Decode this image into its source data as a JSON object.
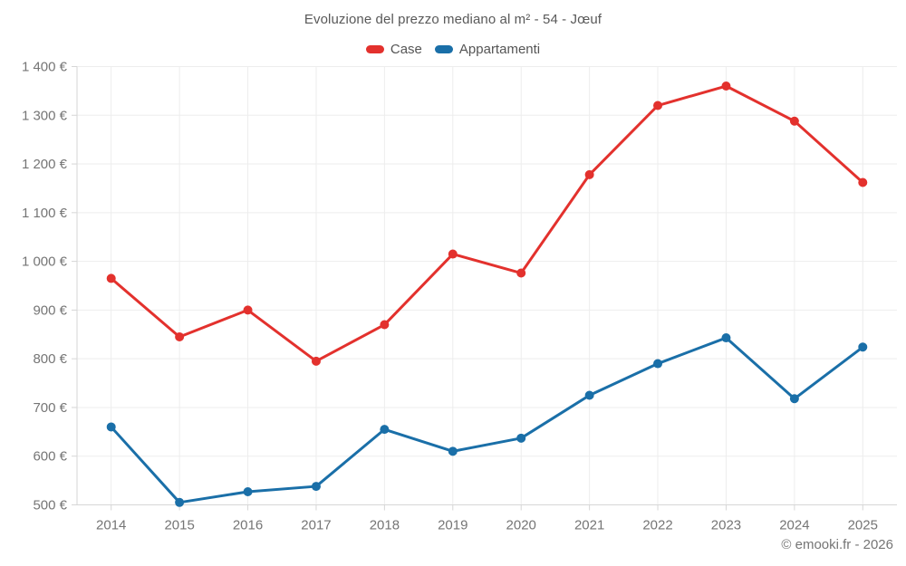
{
  "title": "Evoluzione del prezzo mediano al m² - 54 - Jœuf",
  "footer": "© emooki.fr - 2026",
  "legend": {
    "items": [
      {
        "label": "Case",
        "color": "#e3312d"
      },
      {
        "label": "Appartamenti",
        "color": "#1a6fa8"
      }
    ]
  },
  "colors": {
    "series_case": "#e3312d",
    "series_appartamenti": "#1a6fa8",
    "grid": "#ededed",
    "axis_border": "#d6d6d6",
    "tick_text": "#757575",
    "title_text": "#595959",
    "background": "#ffffff"
  },
  "chart_data": {
    "type": "line",
    "title": "Evoluzione del prezzo mediano al m² - 54 - Jœuf",
    "categories": [
      "2014",
      "2015",
      "2016",
      "2017",
      "2018",
      "2019",
      "2020",
      "2021",
      "2022",
      "2023",
      "2024",
      "2025"
    ],
    "series": [
      {
        "name": "Case",
        "color": "#e3312d",
        "values": [
          965,
          845,
          900,
          795,
          870,
          1015,
          976,
          1178,
          1320,
          1360,
          1288,
          1162
        ]
      },
      {
        "name": "Appartamenti",
        "color": "#1a6fa8",
        "values": [
          660,
          505,
          527,
          538,
          655,
          610,
          637,
          725,
          790,
          843,
          718,
          824
        ]
      }
    ],
    "xlabel": "",
    "ylabel": "",
    "ylim": [
      500,
      1400
    ],
    "y_ticks": [
      500,
      600,
      700,
      800,
      900,
      1000,
      1100,
      1200,
      1300,
      1400
    ],
    "y_tick_labels": [
      "500 €",
      "600 €",
      "700 €",
      "800 €",
      "900 €",
      "1 000 €",
      "1 100 €",
      "1 200 €",
      "1 300 €",
      "1 400 €"
    ],
    "grid": true,
    "legend_position": "top",
    "point_radius": 5,
    "line_width": 3
  }
}
